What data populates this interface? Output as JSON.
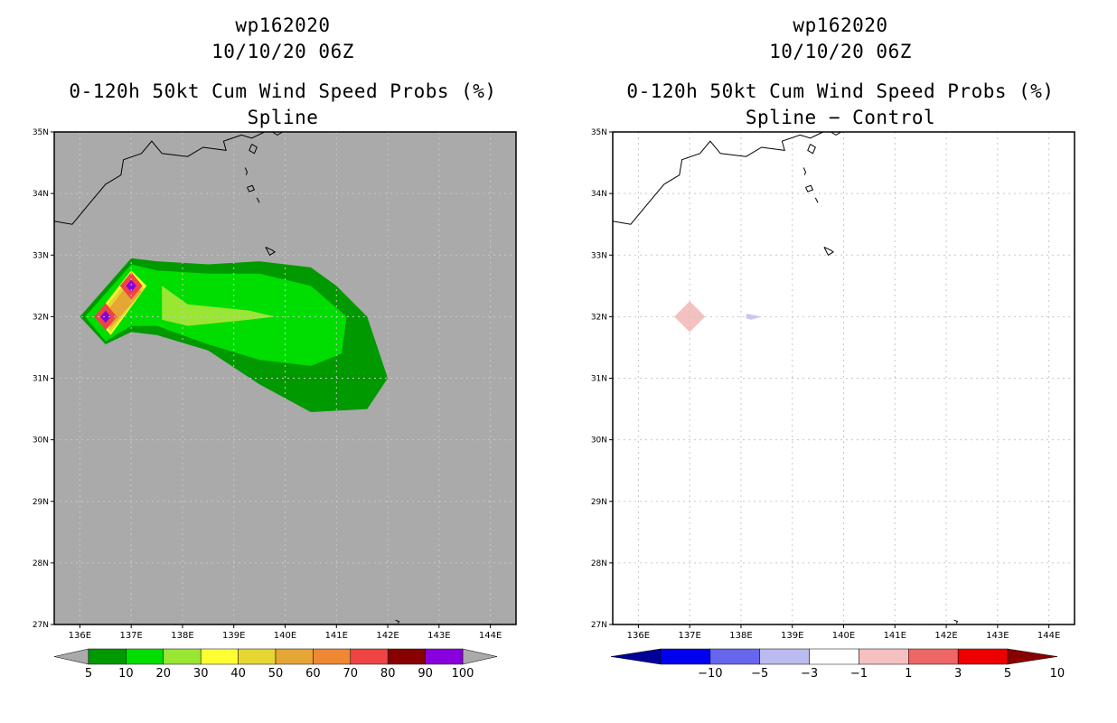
{
  "panels": {
    "left": {
      "storm_id": "wp162020",
      "datetime": "10/10/20 06Z",
      "product": "0-120h 50kt Cum Wind Speed Probs (%)",
      "variant": "Spline"
    },
    "right": {
      "storm_id": "wp162020",
      "datetime": "10/10/20 06Z",
      "product": "0-120h 50kt Cum Wind Speed Probs (%)",
      "variant": "Spline − Control"
    }
  },
  "chart_data": [
    {
      "type": "heatmap",
      "title": "0-120h 50kt Cum Wind Speed Probs (%)",
      "subtitle": "Spline",
      "x_ticks": [
        "136E",
        "137E",
        "138E",
        "139E",
        "140E",
        "141E",
        "142E",
        "143E",
        "144E"
      ],
      "y_ticks": [
        "27N",
        "28N",
        "29N",
        "30N",
        "31N",
        "32N",
        "33N",
        "34N",
        "35N"
      ],
      "xlim": [
        135.5,
        144.5
      ],
      "ylim": [
        27,
        35
      ],
      "background": "#aaaaaa",
      "gridlines": true,
      "legend_labels": [
        "5",
        "10",
        "20",
        "30",
        "40",
        "50",
        "60",
        "70",
        "80",
        "90",
        "100"
      ],
      "legend_colors": [
        "#009900",
        "#00dd00",
        "#99e633",
        "#ffff33",
        "#e6d633",
        "#e6a633",
        "#ee8833",
        "#ee4444",
        "#880000",
        "#8800dd"
      ],
      "regions": [
        {
          "level": 5,
          "color": "#009900",
          "outline": [
            [
              136.0,
              32.0
            ],
            [
              137.0,
              32.95
            ],
            [
              137.5,
              32.9
            ],
            [
              138.5,
              32.85
            ],
            [
              139.5,
              32.9
            ],
            [
              140.5,
              32.8
            ],
            [
              141.0,
              32.5
            ],
            [
              141.6,
              32.0
            ],
            [
              142.0,
              31.0
            ],
            [
              141.6,
              30.5
            ],
            [
              140.5,
              30.45
            ],
            [
              139.5,
              30.9
            ],
            [
              138.5,
              31.45
            ],
            [
              137.5,
              31.7
            ],
            [
              137.0,
              31.75
            ],
            [
              136.5,
              31.55
            ]
          ]
        },
        {
          "level": 10,
          "color": "#00dd00",
          "outline": [
            [
              136.1,
              32.0
            ],
            [
              137.0,
              32.85
            ],
            [
              137.5,
              32.75
            ],
            [
              138.5,
              32.7
            ],
            [
              139.5,
              32.7
            ],
            [
              140.5,
              32.5
            ],
            [
              141.2,
              32.0
            ],
            [
              141.1,
              31.4
            ],
            [
              140.5,
              31.2
            ],
            [
              139.5,
              31.3
            ],
            [
              138.5,
              31.55
            ],
            [
              137.5,
              31.85
            ],
            [
              137.0,
              31.85
            ],
            [
              136.5,
              31.6
            ]
          ]
        },
        {
          "level": 20,
          "color": "#99e633",
          "outline": [
            [
              137.6,
              32.5
            ],
            [
              138.1,
              32.2
            ],
            [
              139.3,
              32.1
            ],
            [
              139.8,
              32.0
            ],
            [
              139.3,
              31.95
            ],
            [
              138.1,
              31.85
            ],
            [
              137.6,
              31.95
            ]
          ]
        },
        {
          "level": 30,
          "color": "#ffff33",
          "outline": [
            [
              136.3,
              32.0
            ],
            [
              137.0,
              32.75
            ],
            [
              137.3,
              32.5
            ],
            [
              136.6,
              31.7
            ]
          ]
        },
        {
          "level": 40,
          "color": "#e6d633",
          "outline": [
            [
              136.35,
              32.0
            ],
            [
              137.0,
              32.68
            ],
            [
              137.25,
              32.45
            ],
            [
              136.6,
              31.75
            ]
          ]
        },
        {
          "level": 50,
          "color": "#e6a633",
          "outline": [
            [
              136.45,
              32.0
            ],
            [
              137.0,
              32.6
            ],
            [
              137.2,
              32.4
            ],
            [
              136.6,
              31.82
            ]
          ]
        },
        {
          "level": 60,
          "color": "#ee4444",
          "outline": [
            [
              137.0,
              32.72
            ],
            [
              137.22,
              32.5
            ],
            [
              137.0,
              32.28
            ],
            [
              136.78,
              32.5
            ]
          ]
        },
        {
          "level": 60,
          "color": "#ee4444",
          "outline": [
            [
              136.5,
              32.22
            ],
            [
              136.72,
              32.0
            ],
            [
              136.5,
              31.78
            ],
            [
              136.28,
              32.0
            ]
          ]
        },
        {
          "level": 90,
          "color": "#8800dd",
          "outline": [
            [
              137.0,
              32.6
            ],
            [
              137.1,
              32.5
            ],
            [
              137.0,
              32.4
            ],
            [
              136.9,
              32.5
            ]
          ]
        },
        {
          "level": 90,
          "color": "#8800dd",
          "outline": [
            [
              136.5,
              32.1
            ],
            [
              136.6,
              32.0
            ],
            [
              136.5,
              31.9
            ],
            [
              136.4,
              32.0
            ]
          ]
        }
      ]
    },
    {
      "type": "heatmap",
      "title": "0-120h 50kt Cum Wind Speed Probs (%)",
      "subtitle": "Spline − Control",
      "x_ticks": [
        "136E",
        "137E",
        "138E",
        "139E",
        "140E",
        "141E",
        "142E",
        "143E",
        "144E"
      ],
      "y_ticks": [
        "27N",
        "28N",
        "29N",
        "30N",
        "31N",
        "32N",
        "33N",
        "34N",
        "35N"
      ],
      "xlim": [
        135.5,
        144.5
      ],
      "ylim": [
        27,
        35
      ],
      "background": "#ffffff",
      "gridlines": true,
      "legend_labels": [
        "−10",
        "−5",
        "−3",
        "−1",
        "1",
        "3",
        "5",
        "10"
      ],
      "legend_colors": [
        "#000099",
        "#0000ee",
        "#6666ee",
        "#bbbbf0",
        "#ffffff",
        "#f5c0c0",
        "#ee6666",
        "#ee0000",
        "#880000"
      ],
      "regions": [
        {
          "level": 1,
          "color": "#f5c0c0",
          "outline": [
            [
              137.0,
              32.25
            ],
            [
              137.3,
              32.0
            ],
            [
              137.0,
              31.75
            ],
            [
              136.7,
              32.0
            ]
          ]
        },
        {
          "level": -1,
          "color": "#c8c8f5",
          "outline": [
            [
              138.1,
              32.05
            ],
            [
              138.4,
              32.0
            ],
            [
              138.2,
              31.95
            ],
            [
              138.1,
              31.97
            ]
          ]
        }
      ]
    }
  ]
}
